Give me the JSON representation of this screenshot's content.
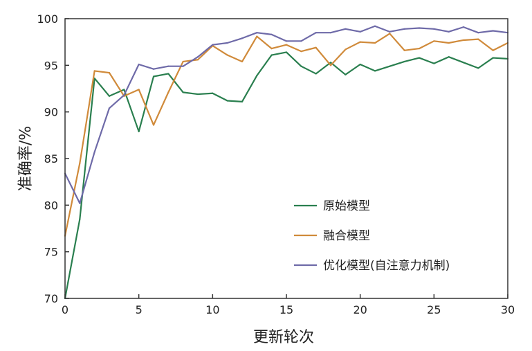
{
  "chart_data": {
    "type": "line",
    "title": "",
    "xlabel": "更新轮次",
    "ylabel": "准确率/%",
    "xlim": [
      0,
      30
    ],
    "ylim": [
      70,
      100
    ],
    "xticks": [
      0,
      5,
      10,
      15,
      20,
      25,
      30
    ],
    "yticks": [
      70,
      75,
      80,
      85,
      90,
      95,
      100
    ],
    "grid": false,
    "legend_position": "bottom-right",
    "x": [
      0,
      1,
      2,
      3,
      4,
      5,
      6,
      7,
      8,
      9,
      10,
      11,
      12,
      13,
      14,
      15,
      16,
      17,
      18,
      19,
      20,
      21,
      22,
      23,
      24,
      25,
      26,
      27,
      28,
      29,
      30
    ],
    "series": [
      {
        "name": "原始模型",
        "color": "#2a7f4f",
        "values": [
          70.0,
          78.5,
          93.6,
          91.7,
          92.4,
          87.9,
          93.8,
          94.1,
          92.1,
          91.9,
          92.0,
          91.2,
          91.1,
          93.9,
          96.1,
          96.4,
          94.9,
          94.1,
          95.3,
          94.0,
          95.1,
          94.4,
          94.9,
          95.4,
          95.8,
          95.2,
          95.9,
          95.3,
          94.7,
          95.8,
          95.7
        ]
      },
      {
        "name": "融合模型",
        "color": "#d08a3a",
        "values": [
          76.7,
          84.5,
          94.4,
          94.2,
          91.7,
          92.4,
          88.6,
          92.1,
          95.4,
          95.6,
          97.1,
          96.1,
          95.4,
          98.1,
          96.8,
          97.2,
          96.5,
          96.9,
          95.0,
          96.7,
          97.5,
          97.4,
          98.4,
          96.6,
          96.8,
          97.6,
          97.4,
          97.7,
          97.8,
          96.6,
          97.4
        ]
      },
      {
        "name": "优化模型(自注意力机制)",
        "color": "#6e6aa8",
        "values": [
          83.4,
          80.2,
          85.7,
          90.4,
          91.8,
          95.1,
          94.6,
          94.9,
          94.9,
          95.9,
          97.2,
          97.4,
          97.9,
          98.5,
          98.3,
          97.6,
          97.6,
          98.5,
          98.5,
          98.9,
          98.6,
          99.2,
          98.6,
          98.9,
          99.0,
          98.9,
          98.6,
          99.1,
          98.5,
          98.7,
          98.5
        ]
      }
    ]
  }
}
